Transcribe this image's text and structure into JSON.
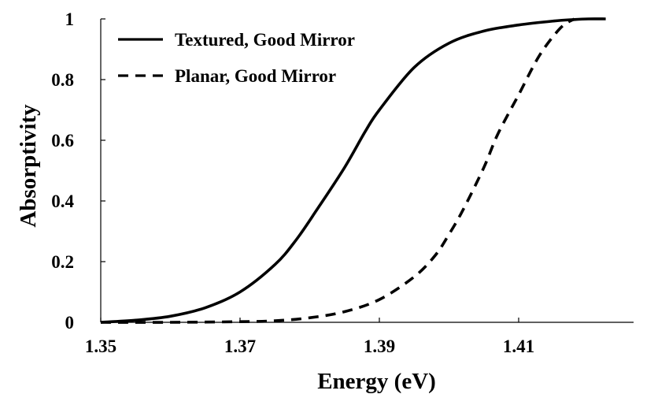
{
  "chart_data": {
    "type": "line",
    "title": "",
    "xlabel": "Energy (eV)",
    "ylabel": "Absorptivity",
    "xlim": [
      1.35,
      1.4265
    ],
    "ylim": [
      0,
      1
    ],
    "x_ticks": [
      1.35,
      1.37,
      1.39,
      1.41
    ],
    "x_tick_labels": [
      "1.35",
      "1.37",
      "1.39",
      "1.41"
    ],
    "y_ticks": [
      0,
      0.2,
      0.4,
      0.6,
      0.8,
      1
    ],
    "y_tick_labels": [
      "0",
      "0.2",
      "0.4",
      "0.6",
      "0.8",
      "1"
    ],
    "grid": false,
    "legend_position": "top-left",
    "series": [
      {
        "name": "Textured, Good Mirror",
        "style": "solid",
        "color": "#000000",
        "x": [
          1.35,
          1.355,
          1.36,
          1.365,
          1.37,
          1.375,
          1.378,
          1.381,
          1.385,
          1.388,
          1.39,
          1.395,
          1.4,
          1.405,
          1.41,
          1.415,
          1.418,
          1.42,
          1.4225
        ],
        "y": [
          0.0,
          0.007,
          0.02,
          0.048,
          0.1,
          0.19,
          0.27,
          0.37,
          0.51,
          0.63,
          0.7,
          0.84,
          0.92,
          0.96,
          0.98,
          0.993,
          0.998,
          1.0,
          1.0
        ]
      },
      {
        "name": "Planar, Good Mirror",
        "style": "dashed",
        "color": "#000000",
        "x": [
          1.35,
          1.36,
          1.37,
          1.375,
          1.38,
          1.385,
          1.39,
          1.395,
          1.398,
          1.4,
          1.402,
          1.405,
          1.407,
          1.41,
          1.413,
          1.416,
          1.418
        ],
        "y": [
          0.0,
          0.0,
          0.002,
          0.005,
          0.015,
          0.035,
          0.075,
          0.15,
          0.22,
          0.29,
          0.37,
          0.51,
          0.62,
          0.75,
          0.88,
          0.97,
          1.0
        ]
      }
    ]
  }
}
